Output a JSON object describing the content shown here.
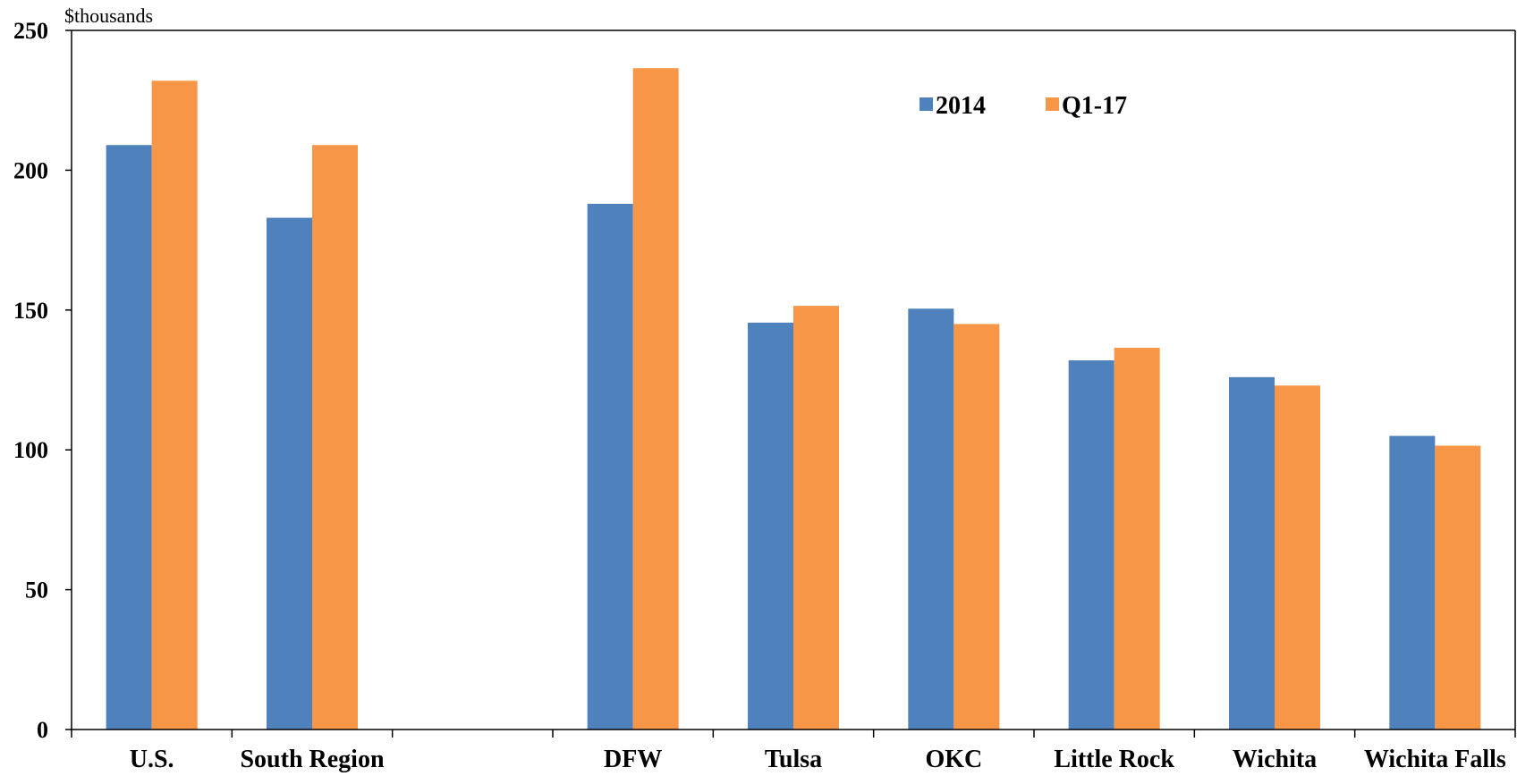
{
  "chart_data": {
    "type": "bar",
    "ylabel": "$thousands",
    "ylim": [
      0,
      250
    ],
    "yticks": [
      "0",
      "50",
      "100",
      "150",
      "200",
      "250"
    ],
    "categories": [
      "U.S.",
      "South Region",
      "",
      "DFW",
      "Tulsa",
      "OKC",
      "Little Rock",
      "Wichita",
      "Wichita Falls"
    ],
    "series": [
      {
        "name": "2014",
        "color": "#4f81bd",
        "values": [
          209,
          183,
          null,
          188,
          145.5,
          150.5,
          132,
          126,
          105
        ]
      },
      {
        "name": "Q1-17",
        "color": "#f79646",
        "values": [
          232,
          209,
          null,
          236.5,
          151.5,
          145,
          136.5,
          123,
          101.5
        ]
      }
    ],
    "legend": {
      "position": "top-right"
    },
    "grid": false
  }
}
